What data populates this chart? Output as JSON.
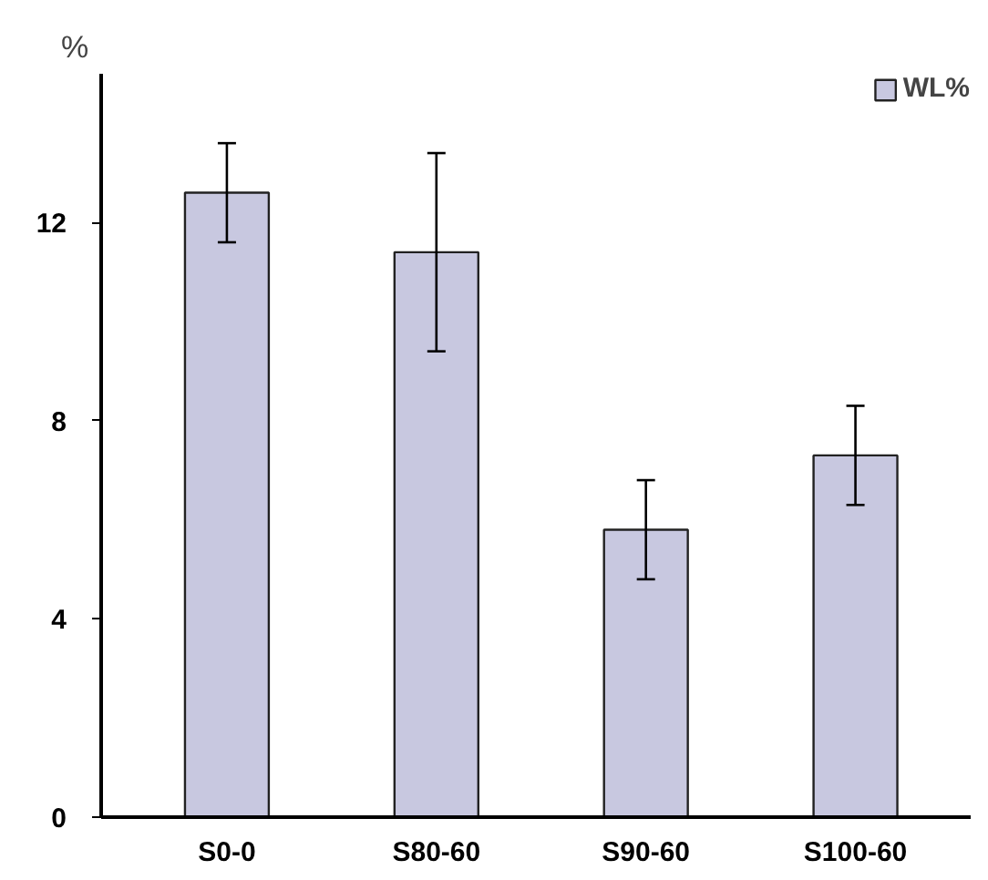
{
  "chart_data": {
    "type": "bar",
    "ylabel": "%",
    "categories": [
      "S0-0",
      "S80-60",
      "S90-60",
      "S100-60"
    ],
    "series": [
      {
        "name": "WL%",
        "color": "#c8c8e0",
        "values": [
          12.6,
          11.4,
          5.8,
          7.3
        ],
        "errors": [
          1.0,
          2.0,
          1.0,
          1.0
        ]
      }
    ],
    "ylim": [
      0,
      15
    ],
    "yticks": [
      0,
      4,
      8,
      12
    ],
    "grid": false,
    "legend": "top right"
  }
}
